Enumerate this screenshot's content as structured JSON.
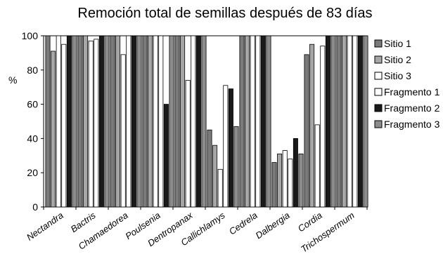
{
  "chart_data": {
    "type": "bar",
    "title": "Remoción total de semillas después de 83 días",
    "ylabel": "%",
    "xlabel": "",
    "ylim": [
      0,
      100
    ],
    "yticks": [
      0,
      20,
      40,
      60,
      80,
      100
    ],
    "grid": false,
    "legend": "right",
    "categories": [
      "Nectandra",
      "Bactris",
      "Chamaedorea",
      "Poulsenia",
      "Dentropanax",
      "Callichlamys",
      "Cedrela",
      "Dalbergia",
      "Cordia",
      "Trichospermum"
    ],
    "series": [
      {
        "name": "Sitio 1",
        "color": "#7a7a7a",
        "values": [
          100,
          100,
          100,
          100,
          100,
          45,
          100,
          26,
          89,
          100
        ]
      },
      {
        "name": "Sitio 2",
        "color": "#a6a6a6",
        "values": [
          91,
          100,
          100,
          100,
          100,
          36,
          100,
          31,
          95,
          100
        ]
      },
      {
        "name": "Sitio 3",
        "color": "#ffffff",
        "values": [
          100,
          97,
          89,
          100,
          74,
          22,
          100,
          33,
          48,
          100
        ]
      },
      {
        "name": "Fragmento 1",
        "color": "#ffffff",
        "values": [
          95,
          98,
          100,
          100,
          100,
          71,
          100,
          28,
          94,
          100
        ]
      },
      {
        "name": "Fragmento 2",
        "color": "#1a1a1a",
        "values": [
          100,
          100,
          100,
          60,
          100,
          69,
          100,
          40,
          100,
          100
        ]
      },
      {
        "name": "Fragmento 3",
        "color": "#8c8c8c",
        "values": [
          100,
          100,
          100,
          100,
          100,
          47,
          100,
          31,
          100,
          100
        ]
      }
    ]
  }
}
